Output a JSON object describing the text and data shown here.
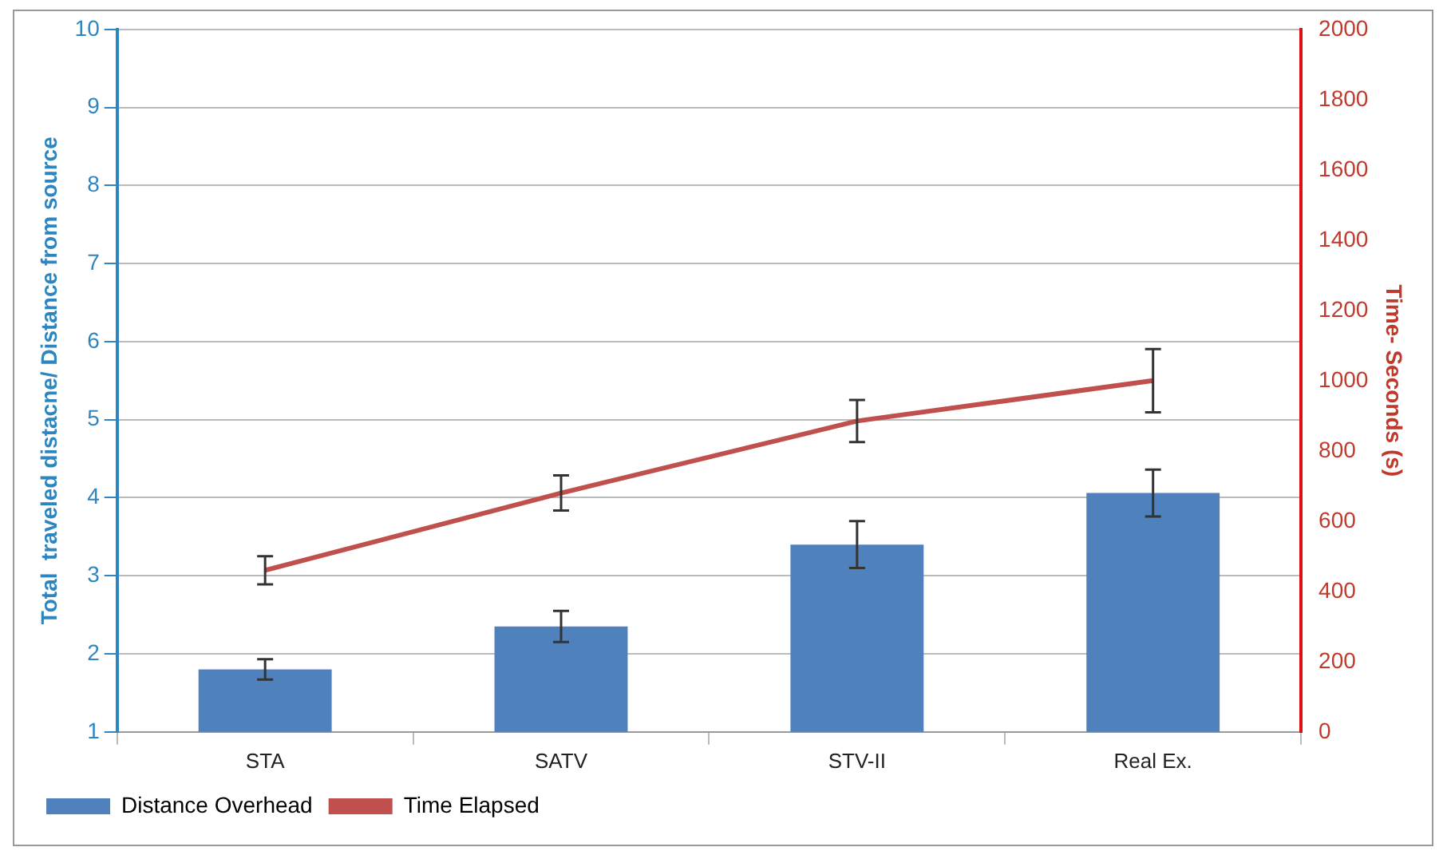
{
  "chart_data": {
    "type": "bar",
    "ylabel": "Total  traveled distacne/ Distance from source",
    "y2label": "Time- Seconds (s)",
    "categories": [
      "STA",
      "SATV",
      "STV-II",
      "Real Ex."
    ],
    "series": [
      {
        "name": "Distance Overhead",
        "color": "#4f81bd",
        "values": [
          1.8,
          2.35,
          3.4,
          4.06
        ],
        "errors": [
          0.13,
          0.2,
          0.3,
          0.3
        ]
      },
      {
        "name": "Time Elapsed",
        "type": "line",
        "axis": "y2",
        "color": "#c0504d",
        "values": [
          460,
          680,
          885,
          1000
        ],
        "errors": [
          40,
          50,
          60,
          90
        ]
      }
    ],
    "ylim": [
      1,
      10
    ],
    "yticks": [
      1,
      2,
      3,
      4,
      5,
      6,
      7,
      8,
      9,
      10
    ],
    "y2lim": [
      0,
      2000
    ],
    "y2ticks": [
      0,
      200,
      400,
      600,
      800,
      1000,
      1200,
      1400,
      1600,
      1800,
      2000
    ],
    "grid": "y",
    "legend": "bottom",
    "marker": "none"
  }
}
